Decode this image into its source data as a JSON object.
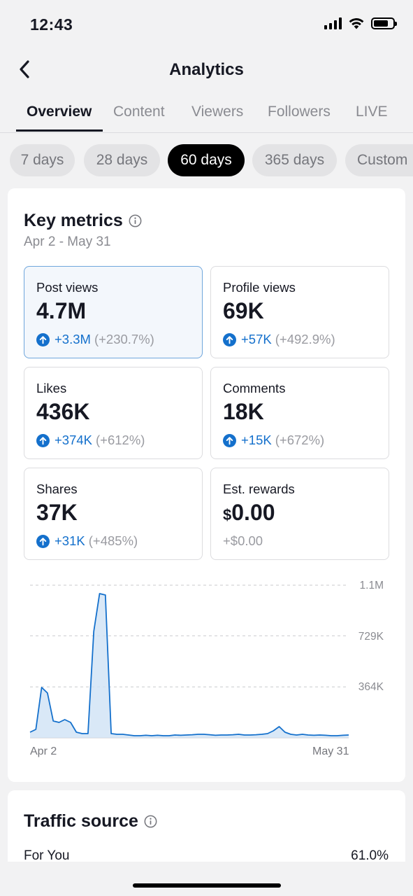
{
  "status_bar": {
    "time": "12:43"
  },
  "header": {
    "title": "Analytics"
  },
  "tabs": [
    {
      "label": "Overview",
      "active": true
    },
    {
      "label": "Content"
    },
    {
      "label": "Viewers"
    },
    {
      "label": "Followers"
    },
    {
      "label": "LIVE"
    }
  ],
  "ranges": [
    "7 days",
    "28 days",
    "60 days",
    "365 days",
    "Custom"
  ],
  "selected_range": "60 days",
  "key_metrics": {
    "title": "Key metrics",
    "date_range": "Apr 2 - May 31",
    "metrics": [
      {
        "label": "Post views",
        "value": "4.7M",
        "change": "+3.3M",
        "pct": "(+230.7%)",
        "selected": true
      },
      {
        "label": "Profile views",
        "value": "69K",
        "change": "+57K",
        "pct": "(+492.9%)"
      },
      {
        "label": "Likes",
        "value": "436K",
        "change": "+374K",
        "pct": "(+612%)"
      },
      {
        "label": "Comments",
        "value": "18K",
        "change": "+15K",
        "pct": "(+672%)"
      },
      {
        "label": "Shares",
        "value": "37K",
        "change": "+31K",
        "pct": "(+485%)"
      },
      {
        "label": "Est. rewards",
        "currency": "$",
        "value": "0.00",
        "change": "+$0.00"
      }
    ]
  },
  "chart_data": {
    "type": "area",
    "series": [
      {
        "values": [
          40000,
          60000,
          360000,
          320000,
          120000,
          110000,
          130000,
          110000,
          40000,
          30000,
          30000,
          760000,
          1030000,
          1020000,
          30000,
          25000,
          25000,
          20000,
          15000,
          15000,
          18000,
          15000,
          18000,
          15000,
          15000,
          20000,
          18000,
          20000,
          22000,
          25000,
          25000,
          22000,
          18000,
          20000,
          20000,
          22000,
          25000,
          20000,
          20000,
          22000,
          25000,
          30000,
          50000,
          80000,
          40000,
          25000,
          20000,
          25000,
          20000,
          18000,
          20000,
          18000,
          15000,
          15000,
          18000,
          20000
        ]
      }
    ],
    "x_tick_labels": [
      "Apr 2",
      "May 31"
    ],
    "y_tick_labels": [
      "1.1M",
      "729K",
      "364K"
    ],
    "y_ticks": [
      1090000,
      729000,
      364000
    ],
    "ylim": [
      0,
      1090000
    ],
    "color": "#1470cc",
    "fill": "#cfe2f5",
    "grid": true
  },
  "traffic_source": {
    "title": "Traffic source",
    "rows": [
      {
        "label": "For You",
        "value": "61.0%"
      }
    ]
  }
}
